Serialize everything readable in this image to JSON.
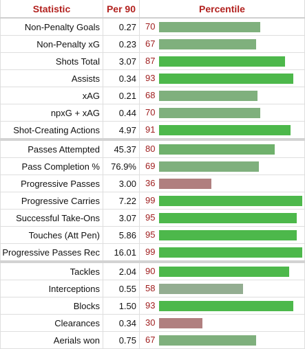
{
  "headers": {
    "statistic": "Statistic",
    "per90": "Per 90",
    "percentile": "Percentile"
  },
  "colors": {
    "high": "#4db84b",
    "mid": "#7fb07d",
    "midlow": "#93ad91",
    "low": "#b07f7f",
    "header_text": "#b2211e",
    "percentile_text": "#9e1b1b"
  },
  "groups": [
    {
      "rows": [
        {
          "label": "Non-Penalty Goals",
          "per90": "0.27",
          "percentile": "70",
          "pct": 70,
          "color": "#7fb07d"
        },
        {
          "label": "Non-Penalty xG",
          "per90": "0.23",
          "percentile": "67",
          "pct": 67,
          "color": "#7fb07d"
        },
        {
          "label": "Shots Total",
          "per90": "3.07",
          "percentile": "87",
          "pct": 87,
          "color": "#4db84b"
        },
        {
          "label": "Assists",
          "per90": "0.34",
          "percentile": "93",
          "pct": 93,
          "color": "#4db84b"
        },
        {
          "label": "xAG",
          "per90": "0.21",
          "percentile": "68",
          "pct": 68,
          "color": "#7fb07d"
        },
        {
          "label": "npxG + xAG",
          "per90": "0.44",
          "percentile": "70",
          "pct": 70,
          "color": "#7fb07d"
        },
        {
          "label": "Shot-Creating Actions",
          "per90": "4.97",
          "percentile": "91",
          "pct": 91,
          "color": "#4db84b"
        }
      ]
    },
    {
      "rows": [
        {
          "label": "Passes Attempted",
          "per90": "45.37",
          "percentile": "80",
          "pct": 80,
          "color": "#6fb16c"
        },
        {
          "label": "Pass Completion %",
          "per90": "76.9%",
          "percentile": "69",
          "pct": 69,
          "color": "#7fb07d"
        },
        {
          "label": "Progressive Passes",
          "per90": "3.00",
          "percentile": "36",
          "pct": 36,
          "color": "#b07f7f"
        },
        {
          "label": "Progressive Carries",
          "per90": "7.22",
          "percentile": "99",
          "pct": 99,
          "color": "#4db84b"
        },
        {
          "label": "Successful Take-Ons",
          "per90": "3.07",
          "percentile": "95",
          "pct": 95,
          "color": "#4db84b"
        },
        {
          "label": "Touches (Att Pen)",
          "per90": "5.86",
          "percentile": "95",
          "pct": 95,
          "color": "#4db84b"
        },
        {
          "label": "Progressive Passes Rec",
          "per90": "16.01",
          "percentile": "99",
          "pct": 99,
          "color": "#4db84b"
        }
      ]
    },
    {
      "rows": [
        {
          "label": "Tackles",
          "per90": "2.04",
          "percentile": "90",
          "pct": 90,
          "color": "#4db84b"
        },
        {
          "label": "Interceptions",
          "per90": "0.55",
          "percentile": "58",
          "pct": 58,
          "color": "#93ad91"
        },
        {
          "label": "Blocks",
          "per90": "1.50",
          "percentile": "93",
          "pct": 93,
          "color": "#4db84b"
        },
        {
          "label": "Clearances",
          "per90": "0.34",
          "percentile": "30",
          "pct": 30,
          "color": "#b07f7f"
        },
        {
          "label": "Aerials won",
          "per90": "0.75",
          "percentile": "67",
          "pct": 67,
          "color": "#7fb07d"
        }
      ]
    }
  ]
}
